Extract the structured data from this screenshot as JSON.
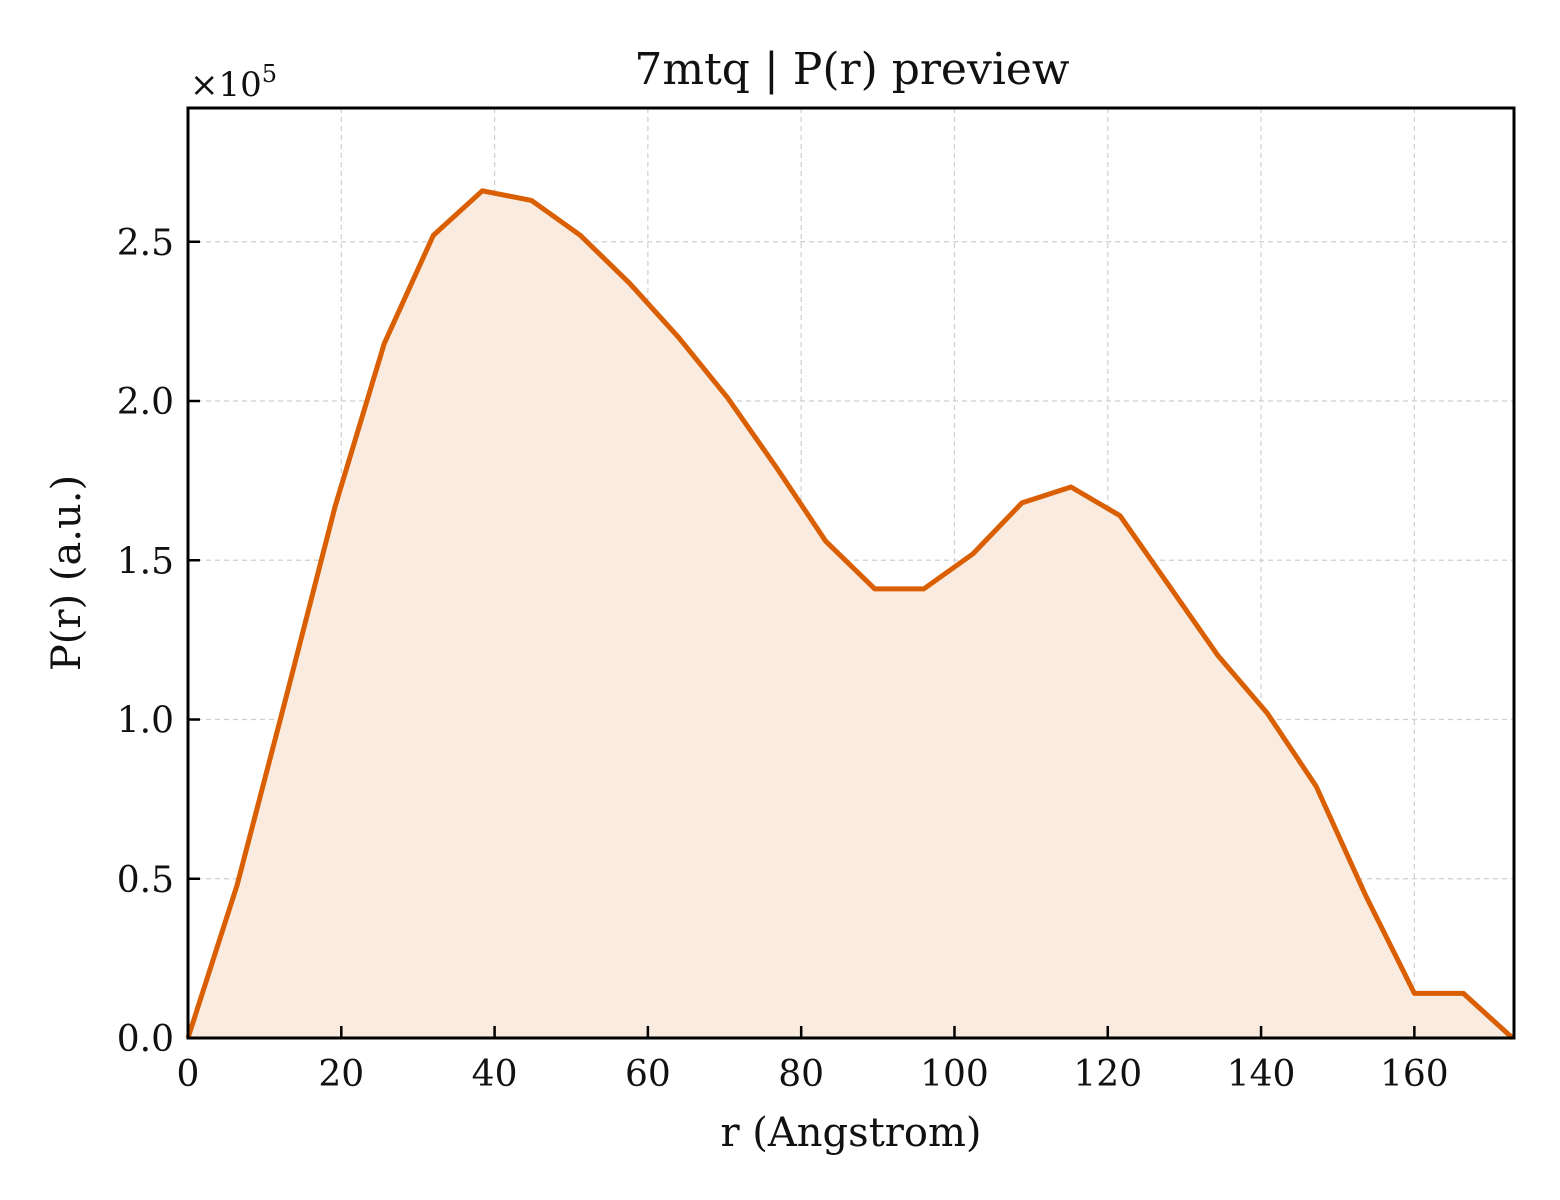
{
  "chart_data": {
    "type": "area",
    "title": "7mtq | P(r) preview",
    "xlabel": "r (Angstrom)",
    "ylabel": "P(r) (a.u.)",
    "y_offset_label": "×10",
    "y_offset_exponent": "5",
    "x_ticks": [
      "0",
      "20",
      "40",
      "60",
      "80",
      "100",
      "120",
      "140",
      "160"
    ],
    "x_tick_values": [
      0,
      20,
      40,
      60,
      80,
      100,
      120,
      140,
      160
    ],
    "y_ticks": [
      "0.0",
      "0.5",
      "1.0",
      "1.5",
      "2.0",
      "2.5"
    ],
    "y_tick_values": [
      0.0,
      0.5,
      1.0,
      1.5,
      2.0,
      2.5
    ],
    "xlim": [
      0,
      173
    ],
    "ylim": [
      0,
      2.92
    ],
    "grid": true,
    "colors": {
      "line": "#d95f02",
      "fill": "#f9ebe0",
      "grid": "#cfcfcf"
    },
    "series": [
      {
        "x": [
          0,
          6.4,
          12.8,
          19.2,
          25.6,
          32.0,
          38.4,
          44.8,
          51.2,
          57.6,
          64.0,
          70.4,
          76.8,
          83.2,
          89.6,
          96.0,
          102.4,
          108.8,
          115.2,
          121.6,
          128.0,
          134.4,
          140.8,
          147.2,
          153.6,
          160.0,
          166.4,
          172.8
        ],
        "values": [
          0.0,
          0.48,
          1.07,
          1.67,
          2.18,
          2.52,
          2.66,
          2.63,
          2.52,
          2.37,
          2.2,
          2.01,
          1.79,
          1.56,
          1.41,
          1.41,
          1.52,
          1.68,
          1.73,
          1.64,
          1.42,
          1.2,
          1.02,
          0.79,
          0.45,
          0.14,
          0.14,
          0.0
        ]
      }
    ]
  }
}
